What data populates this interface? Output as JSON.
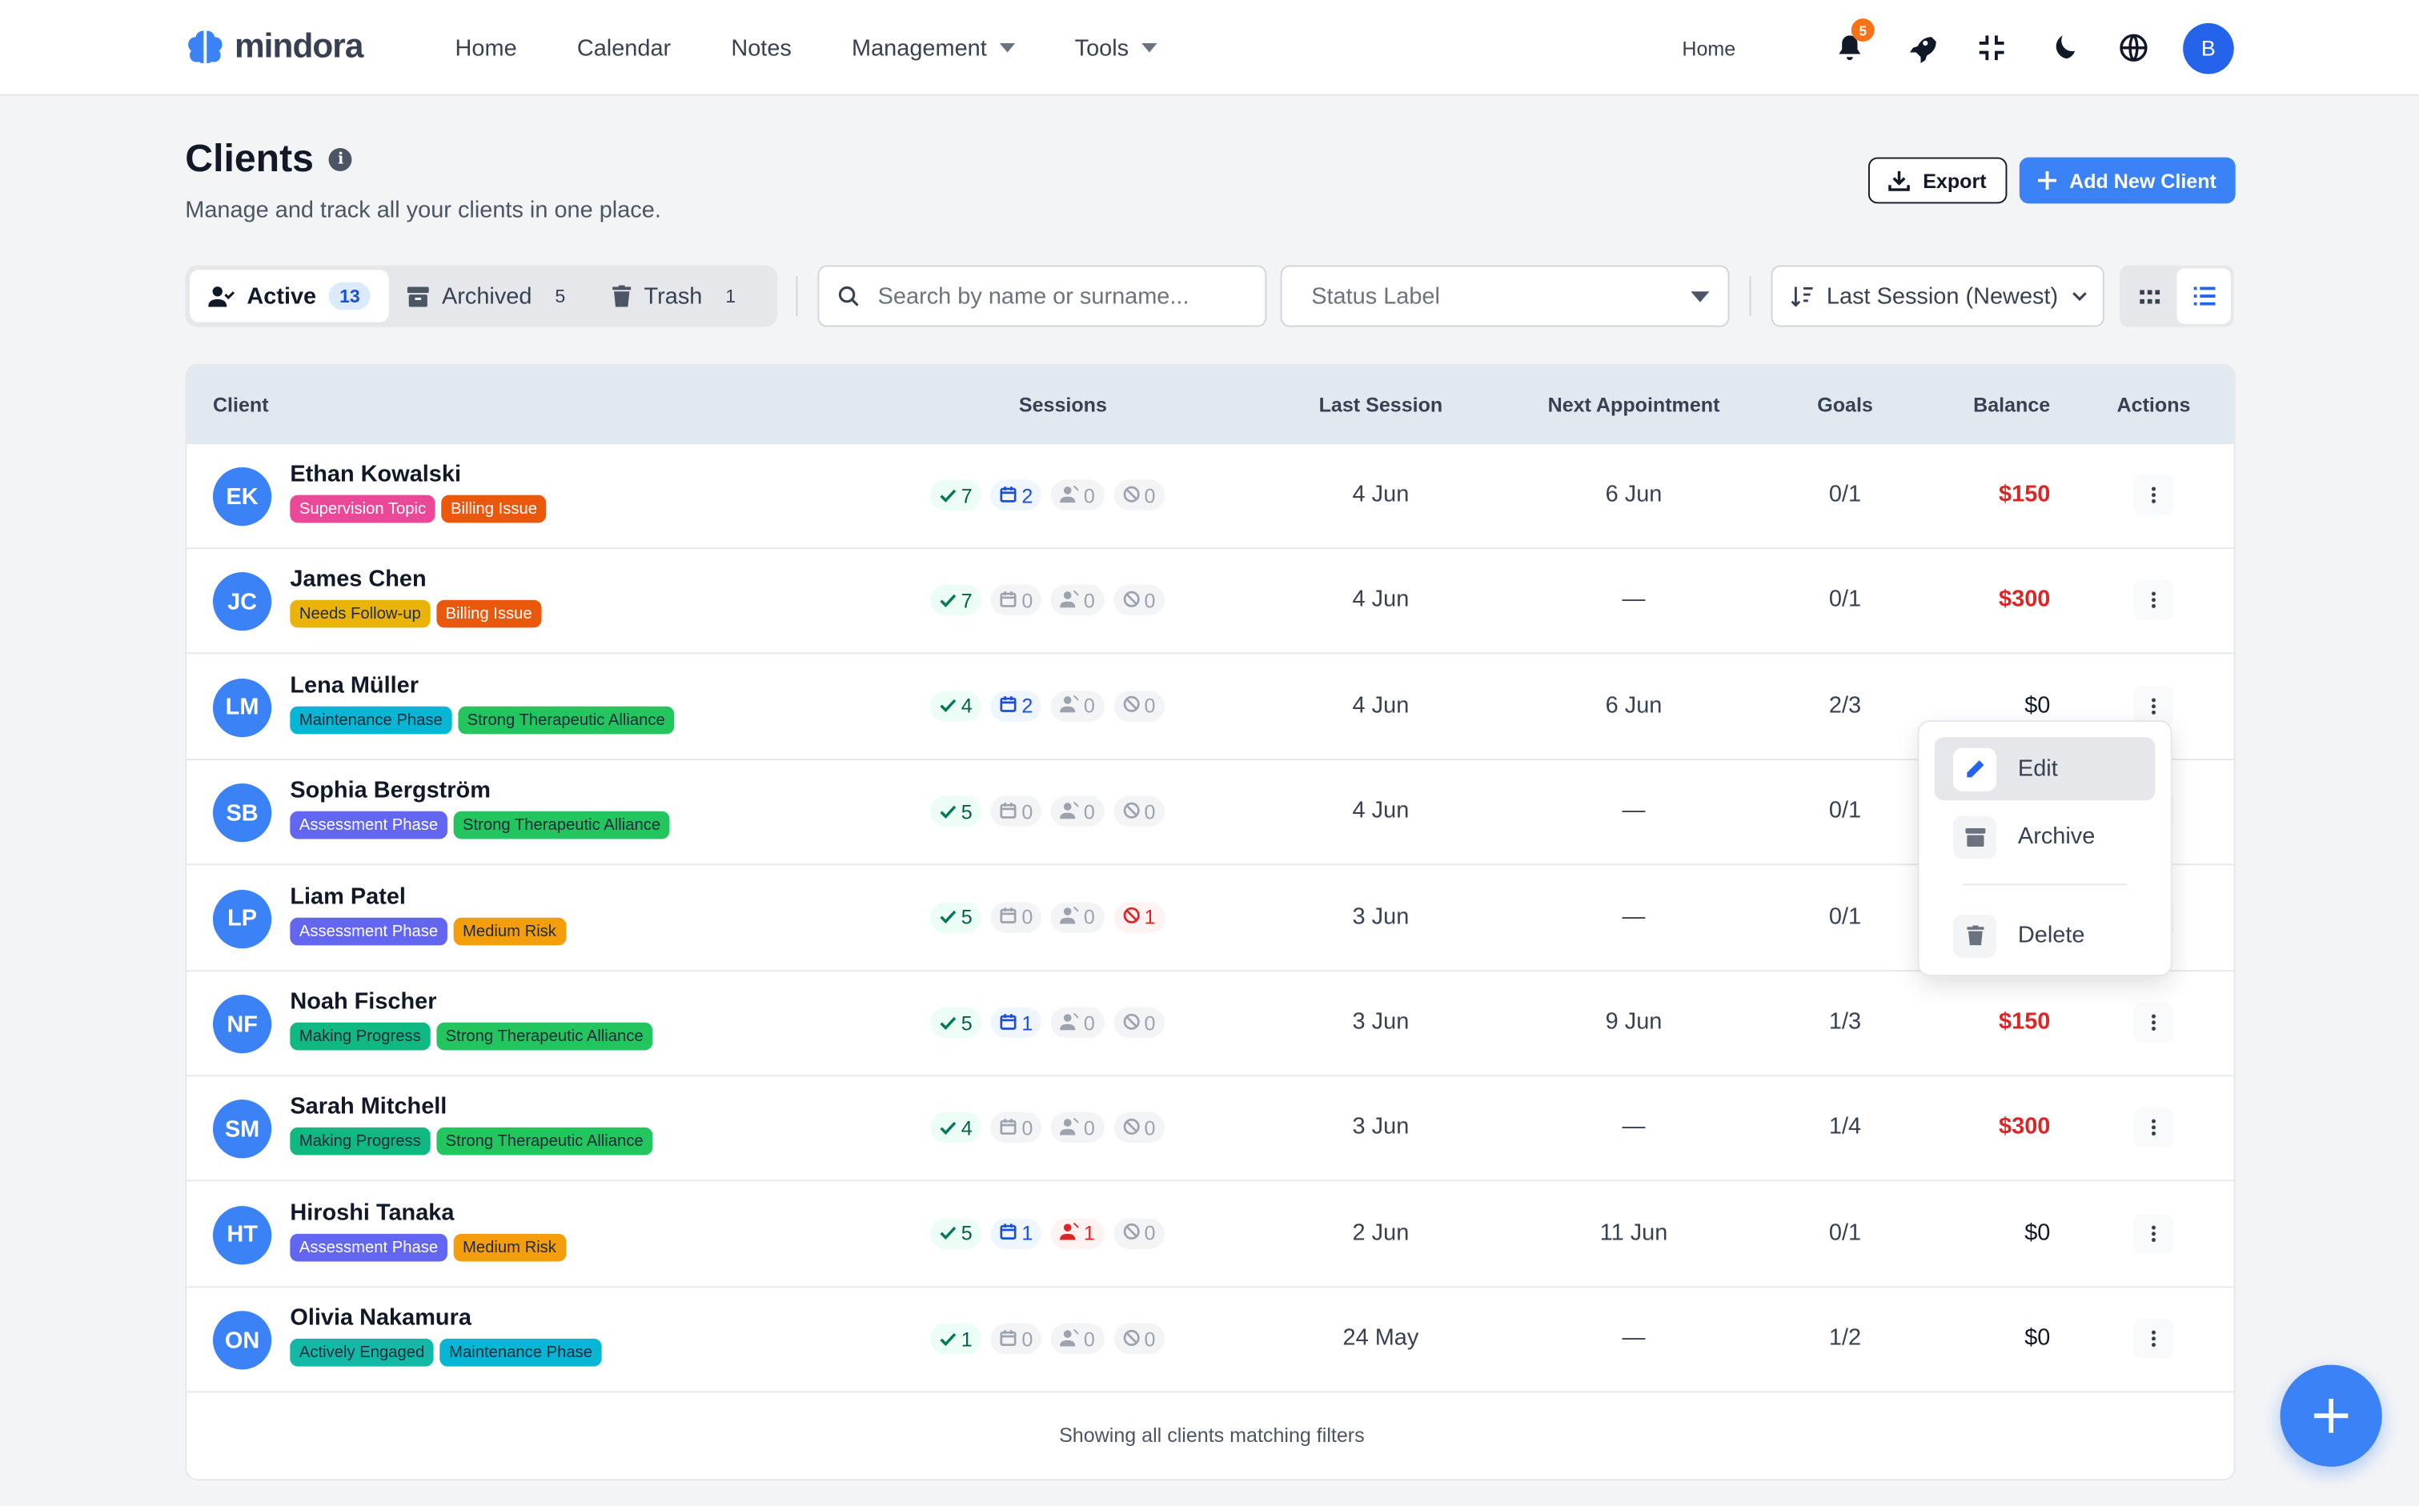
{
  "app": {
    "name": "mindora"
  },
  "nav": {
    "items": [
      "Home",
      "Calendar",
      "Notes",
      "Management",
      "Tools"
    ],
    "home_right": "Home",
    "notification_count": "5",
    "user_initial": "B"
  },
  "page": {
    "title": "Clients",
    "subtitle": "Manage and track all your clients in one place.",
    "export_label": "Export",
    "add_label": "Add New Client"
  },
  "tabs": [
    {
      "label": "Active",
      "count": "13"
    },
    {
      "label": "Archived",
      "count": "5"
    },
    {
      "label": "Trash",
      "count": "1"
    }
  ],
  "filters": {
    "search_placeholder": "Search by name or surname...",
    "status_placeholder": "Status Label",
    "sort_label": "Last Session (Newest)"
  },
  "table": {
    "headers": {
      "client": "Client",
      "sessions": "Sessions",
      "last": "Last Session",
      "next": "Next Appointment",
      "goals": "Goals",
      "balance": "Balance",
      "actions": "Actions"
    },
    "rows": [
      {
        "initials": "EK",
        "name": "Ethan Kowalski",
        "tags": [
          {
            "label": "Supervision Topic",
            "color": "#ec4899"
          },
          {
            "label": "Billing Issue",
            "color": "#ea580c"
          }
        ],
        "completed": "7",
        "scheduled": "2",
        "noshow": "0",
        "cancelled": "0",
        "last": "4 Jun",
        "next": "6 Jun",
        "goals": "0/1",
        "balance": "$150",
        "negative": true
      },
      {
        "initials": "JC",
        "name": "James Chen",
        "tags": [
          {
            "label": "Needs Follow-up",
            "color": "#eab308",
            "dark": true
          },
          {
            "label": "Billing Issue",
            "color": "#ea580c"
          }
        ],
        "completed": "7",
        "scheduled": "0",
        "noshow": "0",
        "cancelled": "0",
        "last": "4 Jun",
        "next": "—",
        "goals": "0/1",
        "balance": "$300",
        "negative": true
      },
      {
        "initials": "LM",
        "name": "Lena Müller",
        "tags": [
          {
            "label": "Maintenance Phase",
            "color": "#06b6d4",
            "dark": true
          },
          {
            "label": "Strong Therapeutic Alliance",
            "color": "#22c55e",
            "dark": true
          }
        ],
        "completed": "4",
        "scheduled": "2",
        "noshow": "0",
        "cancelled": "0",
        "last": "4 Jun",
        "next": "6 Jun",
        "goals": "2/3",
        "balance": "$0",
        "negative": false
      },
      {
        "initials": "SB",
        "name": "Sophia Bergström",
        "tags": [
          {
            "label": "Assessment Phase",
            "color": "#6366f1"
          },
          {
            "label": "Strong Therapeutic Alliance",
            "color": "#22c55e",
            "dark": true
          }
        ],
        "completed": "5",
        "scheduled": "0",
        "noshow": "0",
        "cancelled": "0",
        "last": "4 Jun",
        "next": "—",
        "goals": "0/1",
        "balance": "",
        "negative": false
      },
      {
        "initials": "LP",
        "name": "Liam Patel",
        "tags": [
          {
            "label": "Assessment Phase",
            "color": "#6366f1"
          },
          {
            "label": "Medium Risk",
            "color": "#f59e0b",
            "dark": true
          }
        ],
        "completed": "5",
        "scheduled": "0",
        "noshow": "0",
        "cancelled": "1",
        "last": "3 Jun",
        "next": "—",
        "goals": "0/1",
        "balance": "",
        "negative": false
      },
      {
        "initials": "NF",
        "name": "Noah Fischer",
        "tags": [
          {
            "label": "Making Progress",
            "color": "#10b981",
            "dark": true
          },
          {
            "label": "Strong Therapeutic Alliance",
            "color": "#22c55e",
            "dark": true
          }
        ],
        "completed": "5",
        "scheduled": "1",
        "noshow": "0",
        "cancelled": "0",
        "last": "3 Jun",
        "next": "9 Jun",
        "goals": "1/3",
        "balance": "$150",
        "negative": true
      },
      {
        "initials": "SM",
        "name": "Sarah Mitchell",
        "tags": [
          {
            "label": "Making Progress",
            "color": "#10b981",
            "dark": true
          },
          {
            "label": "Strong Therapeutic Alliance",
            "color": "#22c55e",
            "dark": true
          }
        ],
        "completed": "4",
        "scheduled": "0",
        "noshow": "0",
        "cancelled": "0",
        "last": "3 Jun",
        "next": "—",
        "goals": "1/4",
        "balance": "$300",
        "negative": true
      },
      {
        "initials": "HT",
        "name": "Hiroshi Tanaka",
        "tags": [
          {
            "label": "Assessment Phase",
            "color": "#6366f1"
          },
          {
            "label": "Medium Risk",
            "color": "#f59e0b",
            "dark": true
          }
        ],
        "completed": "5",
        "scheduled": "1",
        "noshow": "1",
        "cancelled": "0",
        "last": "2 Jun",
        "next": "11 Jun",
        "goals": "0/1",
        "balance": "$0",
        "negative": false
      },
      {
        "initials": "ON",
        "name": "Olivia Nakamura",
        "tags": [
          {
            "label": "Actively Engaged",
            "color": "#14b8a6",
            "dark": true
          },
          {
            "label": "Maintenance Phase",
            "color": "#06b6d4",
            "dark": true
          }
        ],
        "completed": "1",
        "scheduled": "0",
        "noshow": "0",
        "cancelled": "0",
        "last": "24 May",
        "next": "—",
        "goals": "1/2",
        "balance": "$0",
        "negative": false
      }
    ],
    "footer": "Showing all clients matching filters"
  },
  "menu": {
    "edit": "Edit",
    "archive": "Archive",
    "delete": "Delete"
  }
}
